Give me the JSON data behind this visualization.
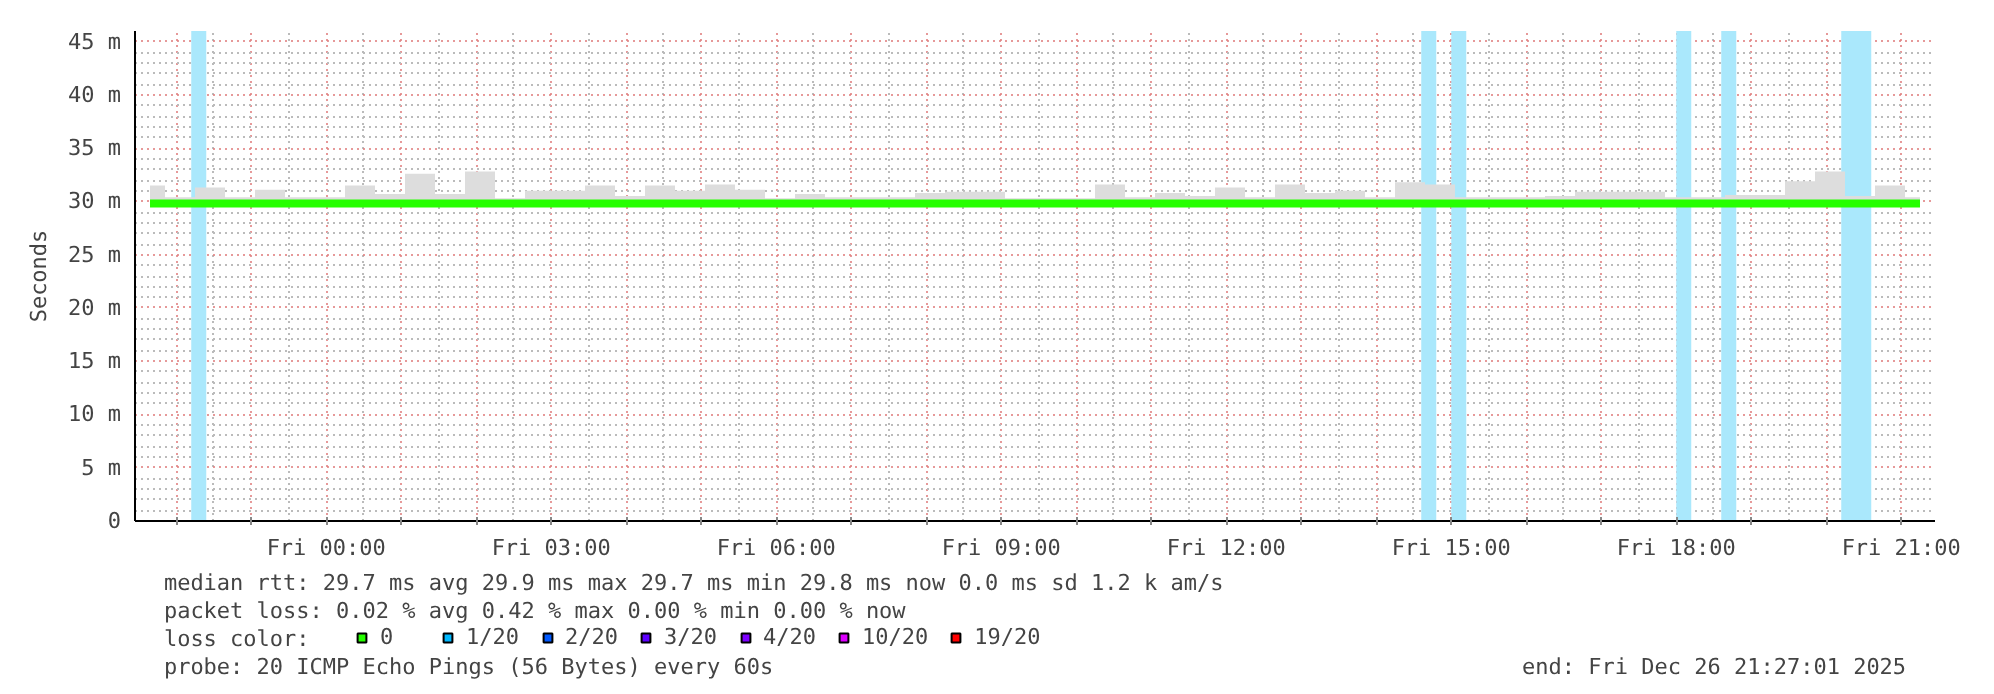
{
  "chart_data": {
    "type": "line",
    "ylabel": "Seconds",
    "legend_title": "loss color:",
    "xlim": [
      "2025-12-25T21:27",
      "2025-12-26T21:27"
    ],
    "ylim": [
      0,
      46
    ],
    "xticks": [
      {
        "value": "2025-12-25T22:00",
        "label": null
      },
      {
        "value": "2025-12-25T23:00",
        "label": null
      },
      {
        "value": "2025-12-26T00:00",
        "label": "Fri 00:00"
      },
      {
        "value": "2025-12-26T01:00",
        "label": null
      },
      {
        "value": "2025-12-26T02:00",
        "label": null
      },
      {
        "value": "2025-12-26T03:00",
        "label": "Fri 03:00"
      },
      {
        "value": "2025-12-26T04:00",
        "label": null
      },
      {
        "value": "2025-12-26T05:00",
        "label": null
      },
      {
        "value": "2025-12-26T06:00",
        "label": "Fri 06:00"
      },
      {
        "value": "2025-12-26T07:00",
        "label": null
      },
      {
        "value": "2025-12-26T08:00",
        "label": null
      },
      {
        "value": "2025-12-26T09:00",
        "label": "Fri 09:00"
      },
      {
        "value": "2025-12-26T10:00",
        "label": null
      },
      {
        "value": "2025-12-26T11:00",
        "label": null
      },
      {
        "value": "2025-12-26T12:00",
        "label": "Fri 12:00"
      },
      {
        "value": "2025-12-26T13:00",
        "label": null
      },
      {
        "value": "2025-12-26T14:00",
        "label": null
      },
      {
        "value": "2025-12-26T15:00",
        "label": "Fri 15:00"
      },
      {
        "value": "2025-12-26T16:00",
        "label": null
      },
      {
        "value": "2025-12-26T17:00",
        "label": null
      },
      {
        "value": "2025-12-26T18:00",
        "label": "Fri 18:00"
      },
      {
        "value": "2025-12-26T19:00",
        "label": null
      },
      {
        "value": "2025-12-26T20:00",
        "label": null
      },
      {
        "value": "2025-12-26T21:00",
        "label": "Fri 21:00"
      }
    ],
    "yticks": [
      0,
      {
        "value": 5,
        "label": "5 m"
      },
      {
        "value": 10,
        "label": "10 m"
      },
      {
        "value": 15,
        "label": "15 m"
      },
      {
        "value": 20,
        "label": "20 m"
      },
      {
        "value": 25,
        "label": "25 m"
      },
      {
        "value": 30,
        "label": "30 m"
      },
      {
        "value": 35,
        "label": "35 m"
      },
      {
        "value": 40,
        "label": "40 m"
      },
      {
        "value": 45,
        "label": "45 m"
      }
    ],
    "grid": true,
    "legend": "bottom",
    "line_style": "solid",
    "x": [
      "2025-12-25T21:39",
      "2025-12-25T22:03",
      "2025-12-25T22:27",
      "2025-12-25T22:51",
      "2025-12-25T23:15",
      "2025-12-25T23:39",
      "2025-12-26T00:03",
      "2025-12-26T00:27",
      "2025-12-26T00:51",
      "2025-12-26T01:15",
      "2025-12-26T01:39",
      "2025-12-26T02:03",
      "2025-12-26T02:27",
      "2025-12-26T02:51",
      "2025-12-26T03:15",
      "2025-12-26T03:39",
      "2025-12-26T04:03",
      "2025-12-26T04:27",
      "2025-12-26T04:51",
      "2025-12-26T05:15",
      "2025-12-26T05:39",
      "2025-12-26T06:03",
      "2025-12-26T06:27",
      "2025-12-26T06:51",
      "2025-12-26T07:15",
      "2025-12-26T07:39",
      "2025-12-26T08:03",
      "2025-12-26T08:27",
      "2025-12-26T08:51",
      "2025-12-26T09:15",
      "2025-12-26T09:39",
      "2025-12-26T10:03",
      "2025-12-26T10:27",
      "2025-12-26T10:51",
      "2025-12-26T11:15",
      "2025-12-26T11:39",
      "2025-12-26T12:03",
      "2025-12-26T12:27",
      "2025-12-26T12:51",
      "2025-12-26T13:15",
      "2025-12-26T13:39",
      "2025-12-26T14:03",
      "2025-12-26T14:27",
      "2025-12-26T14:51",
      "2025-12-26T15:15",
      "2025-12-26T15:39",
      "2025-12-26T16:03",
      "2025-12-26T16:27",
      "2025-12-26T16:51",
      "2025-12-26T17:15",
      "2025-12-26T17:39",
      "2025-12-26T18:03",
      "2025-12-26T18:27",
      "2025-12-26T18:51",
      "2025-12-26T19:15",
      "2025-12-26T19:39",
      "2025-12-26T20:03",
      "2025-12-26T20:27",
      "2025-12-26T20:51",
      "2025-12-26T21:15"
    ],
    "series": [
      {
        "name": "0",
        "color": "#26ff00",
        "values": [
          29.8,
          29.8,
          29.8,
          29.8,
          29.8,
          29.8,
          29.8,
          29.8,
          29.8,
          29.8,
          29.8,
          29.8,
          29.8,
          29.8,
          29.8,
          29.8,
          29.8,
          29.8,
          29.8,
          29.8,
          29.8,
          29.8,
          29.8,
          29.8,
          29.8,
          29.8,
          29.8,
          29.8,
          29.8,
          29.8,
          29.8,
          29.8,
          29.8,
          29.8,
          29.8,
          29.8,
          29.8,
          29.8,
          29.8,
          29.8,
          29.8,
          29.8,
          29.8,
          29.8,
          29.8,
          29.8,
          29.8,
          29.8,
          29.8,
          29.8,
          29.8,
          29.8,
          29.8,
          29.8,
          29.8,
          29.8,
          29.8,
          29.8,
          29.8,
          29.8
        ],
        "lower": [
          29.6,
          29.6,
          29.6,
          29.6,
          29.6,
          29.6,
          29.6,
          29.6,
          29.6,
          29.6,
          29.6,
          29.6,
          29.6,
          29.6,
          29.6,
          29.6,
          29.6,
          29.6,
          29.6,
          29.6,
          29.6,
          29.6,
          29.6,
          29.6,
          29.6,
          29.6,
          29.6,
          29.6,
          29.6,
          29.6,
          29.6,
          29.6,
          29.6,
          29.6,
          29.6,
          29.6,
          29.6,
          29.6,
          29.6,
          29.6,
          29.6,
          29.6,
          29.6,
          29.6,
          29.6,
          29.6,
          29.6,
          29.6,
          29.6,
          29.6,
          29.6,
          29.6,
          29.6,
          29.6,
          29.6,
          29.6,
          29.6,
          29.6,
          29.6,
          29.6
        ],
        "upper": [
          31.5,
          30.4,
          31.3,
          30.4,
          31.1,
          30.4,
          30.4,
          31.5,
          30.7,
          32.6,
          30.7,
          32.8,
          30.3,
          31.0,
          31.0,
          31.5,
          30.5,
          31.5,
          31.0,
          31.6,
          31.1,
          30.3,
          30.7,
          30.4,
          30.4,
          30.4,
          30.8,
          30.9,
          30.9,
          30.3,
          30.3,
          30.3,
          31.6,
          30.4,
          30.8,
          30.5,
          31.3,
          30.4,
          31.6,
          30.8,
          31.0,
          30.4,
          31.8,
          31.6,
          30.4,
          30.4,
          30.4,
          30.5,
          30.9,
          30.9,
          30.9,
          30.4,
          30.4,
          30.6,
          30.6,
          31.9,
          32.8,
          30.5,
          31.5,
          30.4
        ]
      },
      {
        "name": "1/20",
        "color": "#00b8ff",
        "values": [
          null,
          null,
          null,
          null,
          null,
          null,
          null,
          null,
          null,
          null,
          null,
          null,
          null,
          null,
          null,
          null,
          null,
          null,
          null,
          null,
          null,
          null,
          null,
          null,
          null,
          null,
          null,
          null,
          null,
          null,
          null,
          null,
          null,
          null,
          null,
          null,
          null,
          null,
          null,
          null,
          null,
          null,
          null,
          null,
          null,
          null,
          null,
          null,
          null,
          null,
          null,
          null,
          null,
          null,
          null,
          null,
          null,
          null,
          null,
          null
        ]
      },
      {
        "name": "2/20",
        "color": "#0059ff",
        "values": [
          null,
          null,
          null,
          null,
          null,
          null,
          null,
          null,
          null,
          null,
          null,
          null,
          null,
          null,
          null,
          null,
          null,
          null,
          null,
          null,
          null,
          null,
          null,
          null,
          null,
          null,
          null,
          null,
          null,
          null,
          null,
          null,
          null,
          null,
          null,
          null,
          null,
          null,
          null,
          null,
          null,
          null,
          null,
          null,
          null,
          null,
          null,
          null,
          null,
          null,
          null,
          null,
          null,
          null,
          null,
          null,
          null,
          null,
          null,
          null
        ]
      },
      {
        "name": "3/20",
        "color": "#5e00ff",
        "values": [
          null,
          null,
          null,
          null,
          null,
          null,
          null,
          null,
          null,
          null,
          null,
          null,
          null,
          null,
          null,
          null,
          null,
          null,
          null,
          null,
          null,
          null,
          null,
          null,
          null,
          null,
          null,
          null,
          null,
          null,
          null,
          null,
          null,
          null,
          null,
          null,
          null,
          null,
          null,
          null,
          null,
          null,
          null,
          null,
          null,
          null,
          null,
          null,
          null,
          null,
          null,
          null,
          null,
          null,
          null,
          null,
          null,
          null,
          null,
          null
        ]
      },
      {
        "name": "4/20",
        "color": "#7e00ff",
        "values": [
          null,
          null,
          null,
          null,
          null,
          null,
          null,
          null,
          null,
          null,
          null,
          null,
          null,
          null,
          null,
          null,
          null,
          null,
          null,
          null,
          null,
          null,
          null,
          null,
          null,
          null,
          null,
          null,
          null,
          null,
          null,
          null,
          null,
          null,
          null,
          null,
          null,
          null,
          null,
          null,
          null,
          null,
          null,
          null,
          null,
          null,
          null,
          null,
          null,
          null,
          null,
          null,
          null,
          null,
          null,
          null,
          null,
          null,
          null,
          null
        ]
      },
      {
        "name": "10/20",
        "color": "#dd00ff",
        "values": [
          null,
          null,
          null,
          null,
          null,
          null,
          null,
          null,
          null,
          null,
          null,
          null,
          null,
          null,
          null,
          null,
          null,
          null,
          null,
          null,
          null,
          null,
          null,
          null,
          null,
          null,
          null,
          null,
          null,
          null,
          null,
          null,
          null,
          null,
          null,
          null,
          null,
          null,
          null,
          null,
          null,
          null,
          null,
          null,
          null,
          null,
          null,
          null,
          null,
          null,
          null,
          null,
          null,
          null,
          null,
          null,
          null,
          null,
          null,
          null
        ]
      },
      {
        "name": "19/20",
        "color": "#ff0000",
        "values": [
          null,
          null,
          null,
          null,
          null,
          null,
          null,
          null,
          null,
          null,
          null,
          null,
          null,
          null,
          null,
          null,
          null,
          null,
          null,
          null,
          null,
          null,
          null,
          null,
          null,
          null,
          null,
          null,
          null,
          null,
          null,
          null,
          null,
          null,
          null,
          null,
          null,
          null,
          null,
          null,
          null,
          null,
          null,
          null,
          null,
          null,
          null,
          null,
          null,
          null,
          null,
          null,
          null,
          null,
          null,
          null,
          null,
          null,
          null,
          null
        ]
      }
    ],
    "bands": [
      {
        "axis": "x",
        "from": "2025-12-25T22:12",
        "to": "2025-12-25T22:24",
        "color": "#aae8fc"
      },
      {
        "axis": "x",
        "from": "2025-12-26T14:36",
        "to": "2025-12-26T14:48",
        "color": "#aae8fc"
      },
      {
        "axis": "x",
        "from": "2025-12-26T15:00",
        "to": "2025-12-26T15:12",
        "color": "#aae8fc"
      },
      {
        "axis": "x",
        "from": "2025-12-26T18:00",
        "to": "2025-12-26T18:12",
        "color": "#aae8fc"
      },
      {
        "axis": "x",
        "from": "2025-12-26T18:36",
        "to": "2025-12-26T18:48",
        "color": "#aae8fc"
      },
      {
        "axis": "x",
        "from": "2025-12-26T20:12",
        "to": "2025-12-26T20:36",
        "color": "#aae8fc"
      }
    ],
    "annotations": [
      "median rtt:  29.7 ms avg  29.9 ms max  29.7 ms min  29.8 ms now  0.0 ms sd  1.2 k am/s",
      "packet loss: 0.02 % avg  0.42 % max  0.00 % min  0.00 % now",
      "probe:       20 ICMP Echo Pings (56 Bytes) every 60s",
      "end: Fri Dec 26 21:27:01 2025"
    ]
  }
}
